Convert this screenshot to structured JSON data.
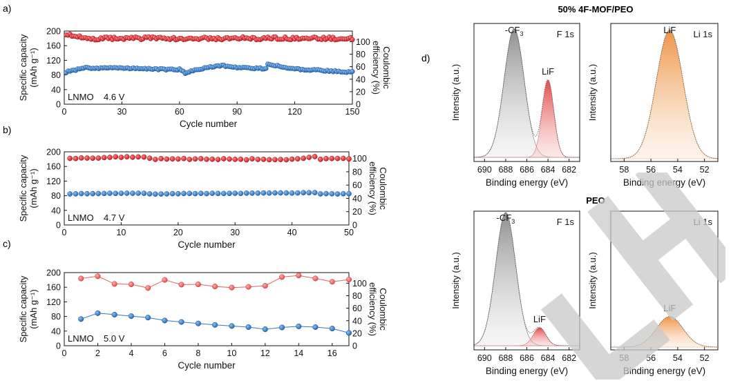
{
  "figure": {
    "panel_labels": [
      "a)",
      "b)",
      "c)",
      "d)"
    ],
    "group_titles": [
      "50% 4F-MOF/PEO",
      "PEO"
    ]
  },
  "colors": {
    "capacity": "#2e78c7",
    "efficiency": "#d42128",
    "efficiency_light": "#e8605f",
    "f_peak": "#9a9a9a",
    "lif_peak_red": "#e8605f",
    "lif_peak_orange": "#f0a05a",
    "watermark": "#bdbdbd"
  },
  "chart_data": [
    {
      "id": "a",
      "type": "scatter",
      "xlabel": "Cycle number",
      "ylabel": "Specific capacity (mAh g⁻¹)",
      "ylabel_lines": [
        "Specific capacity",
        "(mAh g⁻¹)"
      ],
      "y2label": "Coulombic efficiency (%)",
      "y2label_lines": [
        "Coulombic",
        "efficiency (%)"
      ],
      "xlim": [
        0,
        150
      ],
      "ylim": [
        0,
        200
      ],
      "y2lim": [
        0,
        117
      ],
      "xticks": [
        0,
        30,
        60,
        90,
        120,
        150
      ],
      "yticks": [
        0,
        40,
        80,
        120,
        160,
        200
      ],
      "y2ticks": [
        0,
        20,
        40,
        60,
        80,
        100
      ],
      "annotation": "LNMO    4.6 V",
      "series": [
        {
          "role": "capacity",
          "axis": "left",
          "x_start": 1,
          "x_end": 150,
          "keypoints": [
            [
              1,
              88
            ],
            [
              10,
              99
            ],
            [
              30,
              99
            ],
            [
              45,
              96
            ],
            [
              60,
              95
            ],
            [
              63,
              85
            ],
            [
              66,
              90
            ],
            [
              75,
              101
            ],
            [
              82,
              106
            ],
            [
              90,
              100
            ],
            [
              105,
              97
            ],
            [
              106,
              110
            ],
            [
              120,
              96
            ],
            [
              150,
              88
            ]
          ],
          "noise": 2.0
        },
        {
          "role": "efficiency",
          "axis": "left",
          "x_start": 1,
          "x_end": 150,
          "keypoints": [
            [
              1,
              190
            ],
            [
              10,
              180
            ],
            [
              150,
              180
            ]
          ],
          "noise": 4.5
        }
      ]
    },
    {
      "id": "b",
      "type": "scatter",
      "xlabel": "Cycle number",
      "ylabel": "Specific capacity (mAh g⁻¹)",
      "ylabel_lines": [
        "Specific capacity",
        "(mAh g⁻¹)"
      ],
      "y2label": "Coulombic efficiency (%)",
      "y2label_lines": [
        "Coulombic",
        "efficiency (%)"
      ],
      "xlim": [
        0,
        50
      ],
      "ylim": [
        0,
        200
      ],
      "y2lim": [
        0,
        110
      ],
      "xticks": [
        0,
        10,
        20,
        30,
        40,
        50
      ],
      "yticks": [
        0,
        40,
        80,
        120,
        160,
        200
      ],
      "y2ticks": [
        0,
        20,
        40,
        60,
        80,
        100
      ],
      "annotation": "LNMO    4.7 V",
      "series": [
        {
          "role": "capacity",
          "axis": "left",
          "x_start": 1,
          "x_end": 50,
          "keypoints": [
            [
              1,
              85
            ],
            [
              14,
              87
            ],
            [
              15,
              85
            ],
            [
              44,
              88
            ],
            [
              45,
              85
            ],
            [
              50,
              85
            ]
          ],
          "noise": 0.6
        },
        {
          "role": "efficiency",
          "axis": "left",
          "x_start": 1,
          "x_end": 50,
          "keypoints": [
            [
              1,
              183
            ],
            [
              14,
              186
            ],
            [
              15,
              181
            ],
            [
              40,
              179
            ],
            [
              44,
              188
            ],
            [
              45,
              181
            ],
            [
              50,
              181
            ]
          ],
          "noise": 1.8
        }
      ]
    },
    {
      "id": "c",
      "type": "line",
      "xlabel": "Cycle number",
      "ylabel": "Specific capacity (mAh g⁻¹)",
      "ylabel_lines": [
        "Specific capacity",
        "(mAh g⁻¹)"
      ],
      "y2label": "Coulombic efficiency (%)",
      "y2label_lines": [
        "Coulombic",
        "efficiency (%)"
      ],
      "xlim": [
        0,
        17
      ],
      "ylim": [
        0,
        200
      ],
      "y2lim": [
        0,
        117
      ],
      "xticks": [
        0,
        2,
        4,
        6,
        8,
        10,
        12,
        14,
        16
      ],
      "yticks": [
        0,
        40,
        80,
        120,
        160,
        200
      ],
      "y2ticks": [
        0,
        20,
        40,
        60,
        80,
        100
      ],
      "annotation": "LNMO    5.0 V",
      "series": [
        {
          "role": "capacity",
          "axis": "left",
          "x": [
            1,
            2,
            3,
            4,
            5,
            6,
            7,
            8,
            9,
            10,
            11,
            12,
            13,
            14,
            15,
            16,
            17
          ],
          "values": [
            73,
            89,
            85,
            81,
            77,
            69,
            65,
            61,
            57,
            54,
            51,
            45,
            50,
            53,
            51,
            47,
            35
          ]
        },
        {
          "role": "efficiency",
          "axis": "left",
          "x": [
            1,
            2,
            3,
            4,
            5,
            6,
            7,
            8,
            9,
            10,
            11,
            12,
            13,
            14,
            15,
            16,
            17
          ],
          "values": [
            184,
            190,
            169,
            168,
            158,
            180,
            167,
            168,
            162,
            159,
            161,
            164,
            188,
            192,
            184,
            175,
            181
          ]
        }
      ]
    },
    {
      "id": "d1",
      "type": "area",
      "tag": "F 1s",
      "xlabel": "Binding energy (eV)",
      "ylabel": "Intensity (a.u.)",
      "xlim": [
        691,
        681
      ],
      "xticks": [
        690,
        688,
        686,
        684,
        682
      ],
      "ylim": [
        0,
        1
      ],
      "baseline": 0.03,
      "peaks": [
        {
          "label": "-CF₃",
          "label_parts": [
            "-CF",
            "3"
          ],
          "center": 687.2,
          "sigma": 0.95,
          "amplitude": 0.93,
          "style": "gray"
        },
        {
          "label": "LiF",
          "center": 684.0,
          "sigma": 0.55,
          "amplitude": 0.56,
          "style": "red"
        }
      ]
    },
    {
      "id": "d2",
      "type": "area",
      "tag": "Li 1s",
      "xlabel": "Binding energy (eV)",
      "ylabel": "Intensity (a.u.)",
      "xlim": [
        59,
        51
      ],
      "xticks": [
        58,
        56,
        54,
        52
      ],
      "ylim": [
        0,
        1
      ],
      "baseline": 0.02,
      "peaks": [
        {
          "label": "LiF",
          "center": 54.6,
          "sigma": 1.0,
          "amplitude": 0.93,
          "style": "orange"
        }
      ]
    },
    {
      "id": "d3",
      "type": "area",
      "tag": "F 1s",
      "xlabel": "Binding energy (eV)",
      "ylabel": "Intensity (a.u.)",
      "xlim": [
        691,
        681
      ],
      "xticks": [
        690,
        688,
        686,
        684,
        682
      ],
      "ylim": [
        0,
        1
      ],
      "baseline": 0.03,
      "peaks": [
        {
          "label": "-CF₃",
          "label_parts": [
            "-CF",
            "3"
          ],
          "center": 688.0,
          "sigma": 0.95,
          "amplitude": 0.96,
          "style": "gray"
        },
        {
          "label": "LiF",
          "center": 684.8,
          "sigma": 0.6,
          "amplitude": 0.13,
          "style": "red"
        }
      ]
    },
    {
      "id": "d4",
      "type": "area",
      "tag": "Li 1s",
      "xlabel": "Binding energy (eV)",
      "ylabel": "Intensity (a.u.)",
      "xlim": [
        59,
        51
      ],
      "xticks": [
        58,
        56,
        54,
        52
      ],
      "ylim": [
        0,
        1
      ],
      "baseline": 0.02,
      "peaks": [
        {
          "label": "LiF",
          "center": 54.6,
          "sigma": 1.0,
          "amplitude": 0.22,
          "style": "orange"
        }
      ]
    }
  ]
}
